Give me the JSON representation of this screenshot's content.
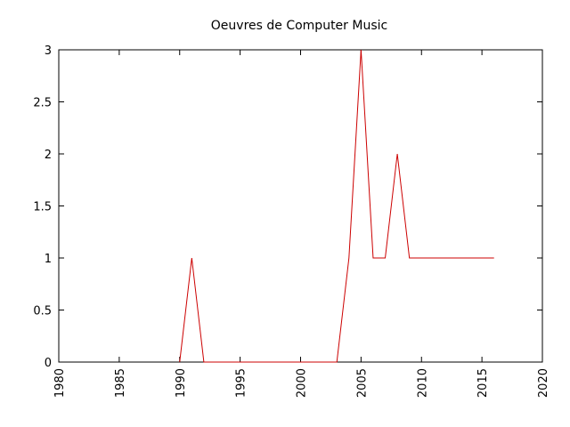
{
  "chart_data": {
    "type": "line",
    "title": "Oeuvres de Computer Music",
    "xlabel": "",
    "ylabel": "",
    "xlim": [
      1980,
      2020
    ],
    "ylim": [
      0,
      3
    ],
    "x_ticks": [
      "1980",
      "1985",
      "1990",
      "1995",
      "2000",
      "2005",
      "2010",
      "2015",
      "2020"
    ],
    "y_ticks": [
      "0",
      "0.5",
      "1",
      "1.5",
      "2",
      "2.5",
      "3"
    ],
    "grid": false,
    "legend": "none",
    "series": [
      {
        "color": "#cc0000",
        "x": [
          1990,
          1991,
          1992,
          1993,
          1994,
          1995,
          1996,
          1997,
          1998,
          1999,
          2000,
          2001,
          2002,
          2003,
          2004,
          2005,
          2006,
          2007,
          2008,
          2009,
          2010,
          2011,
          2012,
          2013,
          2014,
          2015,
          2016
        ],
        "y": [
          0,
          1,
          0,
          0,
          0,
          0,
          0,
          0,
          0,
          0,
          0,
          0,
          0,
          0,
          1,
          3,
          1,
          1,
          2,
          1,
          1,
          1,
          1,
          1,
          1,
          1,
          1
        ]
      }
    ]
  }
}
